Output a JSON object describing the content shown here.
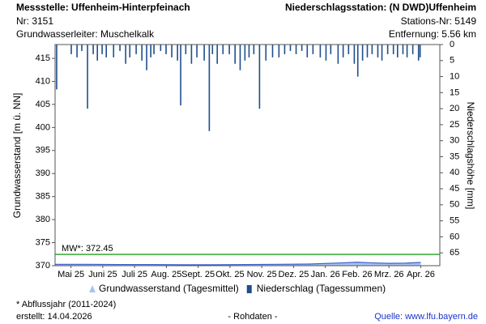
{
  "header": {
    "left": [
      "Messstelle: Uffenheim-Hinterpfeinach",
      "Nr: 3151",
      "Grundwasserleiter: Muschelkalk"
    ],
    "right": [
      "Niederschlagsstation: (N DWD)Uffenheim",
      "Stations-Nr: 5149",
      "Entfernung: 5.56 km"
    ]
  },
  "chart_data": {
    "type": "combo",
    "ylabel": "Grundwasserstand [m ü. NN]",
    "y2label": "Niederschlagshöhe [mm]",
    "xlim": [
      0,
      12.1
    ],
    "xticks": [
      {
        "value": 0.5,
        "label": "Mai 25"
      },
      {
        "value": 1.5,
        "label": "Juni 25"
      },
      {
        "value": 2.5,
        "label": "Juli 25"
      },
      {
        "value": 3.5,
        "label": "Aug. 25"
      },
      {
        "value": 4.5,
        "label": "Sept. 25"
      },
      {
        "value": 5.5,
        "label": "Okt. 25"
      },
      {
        "value": 6.5,
        "label": "Nov. 25"
      },
      {
        "value": 7.5,
        "label": "Dez. 25"
      },
      {
        "value": 8.5,
        "label": "Jan. 26"
      },
      {
        "value": 9.5,
        "label": "Feb. 26"
      },
      {
        "value": 10.5,
        "label": "Mrz. 26"
      },
      {
        "value": 11.5,
        "label": "Apr. 26"
      }
    ],
    "ylim": [
      370,
      418
    ],
    "yticks": [
      370,
      375,
      380,
      385,
      390,
      395,
      400,
      405,
      410,
      415
    ],
    "y2lim": [
      0,
      69
    ],
    "y2_inverted": true,
    "y2ticks": [
      0,
      5,
      10,
      15,
      20,
      25,
      30,
      35,
      40,
      45,
      50,
      55,
      60,
      65
    ],
    "mean_line": {
      "value": 372.45,
      "label": "MW*: 372.45",
      "color": "#22a020"
    },
    "series": [
      {
        "name": "Grundwasserstand (Tagesmittel)",
        "type": "area",
        "color": "#3a5fcd",
        "fill": "#a8c4ee",
        "x": [
          0,
          1,
          2,
          3,
          4,
          5,
          6,
          7,
          8,
          9,
          9.5,
          10,
          10.5,
          11,
          11.5
        ],
        "values": [
          370.3,
          370.3,
          370.25,
          370.25,
          370.2,
          370.2,
          370.25,
          370.3,
          370.35,
          370.6,
          370.75,
          370.6,
          370.5,
          370.55,
          370.7
        ]
      },
      {
        "name": "Niederschlag (Tagessummen)",
        "type": "bar",
        "axis": "y2",
        "color": "#1f4e8c",
        "x": [
          0.05,
          0.51,
          0.69,
          0.84,
          1.02,
          1.2,
          1.33,
          1.48,
          1.61,
          1.84,
          2.04,
          2.22,
          2.35,
          2.55,
          2.73,
          2.88,
          3.01,
          3.11,
          3.32,
          3.49,
          3.67,
          3.85,
          3.95,
          4.11,
          4.29,
          4.46,
          4.69,
          4.85,
          4.95,
          5.1,
          5.28,
          5.48,
          5.66,
          5.82,
          5.97,
          6.1,
          6.25,
          6.43,
          6.63,
          6.84,
          7.04,
          7.22,
          7.4,
          7.58,
          7.76,
          7.93,
          8.11,
          8.34,
          8.52,
          8.67,
          8.9,
          9.06,
          9.23,
          9.41,
          9.52,
          9.67,
          9.82,
          9.97,
          10.15,
          10.28,
          10.46,
          10.64,
          10.77,
          10.94,
          11.07,
          11.25,
          11.43,
          11.48
        ],
        "values": [
          14,
          3,
          4,
          2,
          20,
          3,
          5,
          3,
          4,
          4,
          2,
          6,
          4,
          3,
          5,
          8,
          4,
          3,
          2,
          3,
          4,
          5,
          19,
          3,
          6,
          4,
          5,
          27,
          3,
          6,
          3,
          3,
          6,
          8,
          5,
          4,
          3,
          20,
          5,
          4,
          4,
          3,
          2,
          3,
          2,
          4,
          3,
          4,
          5,
          3,
          6,
          4,
          3,
          6,
          10,
          5,
          4,
          3,
          4,
          5,
          3,
          3,
          4,
          3,
          4,
          3,
          5,
          4
        ]
      }
    ]
  },
  "footer": {
    "note": "* Abflussjahr (2011-2024)",
    "created": "erstellt:  14.04.2026",
    "center": "- Rohdaten -",
    "source": "Quelle: www.lfu.bayern.de"
  }
}
